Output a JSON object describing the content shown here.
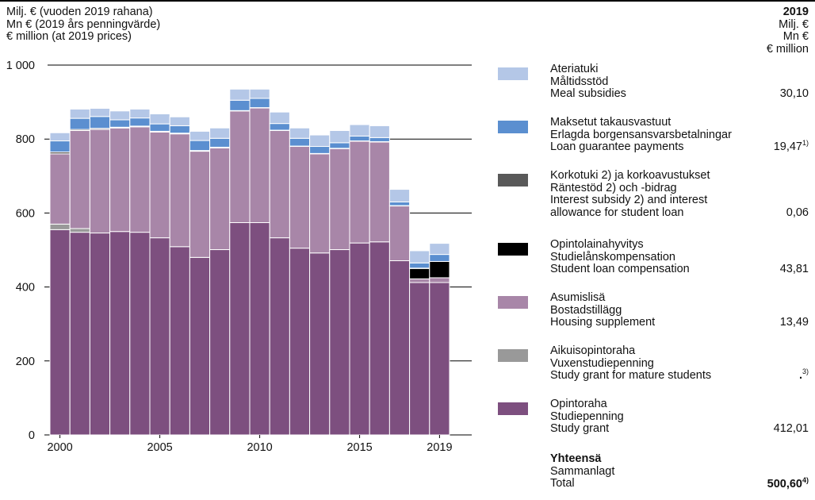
{
  "header": {
    "unit_lines": [
      "Milj. € (vuoden 2019 rahana)",
      "Mn € (2019 års penningvärde)",
      "€ million (at 2019 prices)"
    ],
    "year": "2019",
    "year_units": [
      "Milj. €",
      "Mn €",
      "€ million"
    ]
  },
  "legend": [
    {
      "lines": [
        "Ateriatuki",
        "Måltidsstöd",
        "Meal subsidies"
      ],
      "value": "30,10",
      "note": "",
      "color": "#b4c7e7"
    },
    {
      "lines": [
        "Maksetut takausvastuut",
        "Erlagda borgensansvarsbetalningar",
        "Loan guarantee payments"
      ],
      "value": "19,47",
      "note": "1)",
      "color": "#5b8fd0"
    },
    {
      "lines": [
        "Korkotuki 2) ja korkoavustukset",
        "Räntestöd 2) och -bidrag",
        "Interest subsidy 2) and interest",
        "allowance for student loan"
      ],
      "value": "0,06",
      "note": "",
      "color": "#595959"
    },
    {
      "lines": [
        "Opintolainahyvitys",
        "Studielånskompensation",
        "Student loan compensation"
      ],
      "value": "43,81",
      "note": "",
      "color": "#000000"
    },
    {
      "lines": [
        "Asumislisä",
        "Bostadstillägg",
        "Housing supplement"
      ],
      "value": "13,49",
      "note": "",
      "color": "#a886a8"
    },
    {
      "lines": [
        "Aikuisopintoraha",
        "Vuxenstudiepenning",
        "Study grant for mature students"
      ],
      "value": ".",
      "note": "3)",
      "color": "#999999"
    },
    {
      "lines": [
        "Opintoraha",
        "Studiepenning",
        "Study grant"
      ],
      "value": "412,01",
      "note": "",
      "color": "#7d4f7f"
    }
  ],
  "total": {
    "lines": [
      "Yhteensä",
      "Sammanlagt",
      "Total"
    ],
    "value": "500,60",
    "note": "4)"
  },
  "chart_data": {
    "type": "bar",
    "stacked": true,
    "categories": [
      "2000",
      "2001",
      "2002",
      "2003",
      "2004",
      "2005",
      "2006",
      "2007",
      "2008",
      "2009",
      "2010",
      "2011",
      "2012",
      "2013",
      "2014",
      "2015",
      "2016",
      "2017",
      "2018",
      "2019"
    ],
    "x_tick_labels": [
      "2000",
      "2005",
      "2010",
      "2015",
      "2019"
    ],
    "y_ticks": [
      "0",
      "200",
      "400",
      "600",
      "800",
      "1 000"
    ],
    "ylim": [
      0,
      1000
    ],
    "grid": "horizontal",
    "series": [
      {
        "name": "Study grant",
        "color": "#7d4f7f",
        "values": [
          555,
          548,
          546,
          550,
          548,
          533,
          509,
          480,
          501,
          574,
          574,
          533,
          505,
          492,
          501,
          519,
          522,
          471,
          412,
          412
        ]
      },
      {
        "name": "Study grant for mature students",
        "color": "#999999",
        "values": [
          15,
          10,
          0,
          0,
          0,
          0,
          0,
          0,
          0,
          0,
          0,
          0,
          0,
          0,
          0,
          0,
          0,
          0,
          0,
          0
        ]
      },
      {
        "name": "Housing supplement",
        "color": "#a886a8",
        "values": [
          190,
          265,
          280,
          280,
          285,
          286,
          305,
          287,
          275,
          302,
          310,
          290,
          275,
          268,
          273,
          275,
          270,
          148,
          10,
          13
        ]
      },
      {
        "name": "Student loan compensation",
        "color": "#000000",
        "values": [
          0,
          0,
          0,
          0,
          0,
          0,
          0,
          0,
          0,
          0,
          0,
          0,
          0,
          0,
          0,
          0,
          0,
          0,
          28,
          44
        ]
      },
      {
        "name": "Interest subsidy and interest allowance for student loan",
        "color": "#595959",
        "values": [
          5,
          3,
          3,
          2,
          2,
          2,
          2,
          2,
          2,
          1,
          1,
          1,
          1,
          1,
          1,
          1,
          1,
          1,
          1,
          0
        ]
      },
      {
        "name": "Loan guarantee payments",
        "color": "#5b8fd0",
        "values": [
          30,
          30,
          32,
          20,
          22,
          20,
          20,
          27,
          24,
          28,
          25,
          18,
          21,
          19,
          15,
          13,
          11,
          10,
          14,
          19
        ]
      },
      {
        "name": "Meal subsidies",
        "color": "#b4c7e7",
        "values": [
          22,
          25,
          22,
          24,
          24,
          27,
          24,
          25,
          28,
          30,
          25,
          31,
          28,
          31,
          33,
          31,
          32,
          34,
          33,
          30
        ]
      }
    ]
  }
}
